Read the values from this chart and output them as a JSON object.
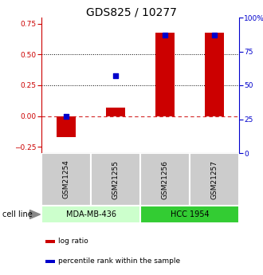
{
  "title": "GDS825 / 10277",
  "samples": [
    "GSM21254",
    "GSM21255",
    "GSM21256",
    "GSM21257"
  ],
  "log_ratio": [
    -0.17,
    0.07,
    0.68,
    0.68
  ],
  "percentile_rank": [
    27,
    57,
    87,
    87
  ],
  "left_ylim": [
    -0.3,
    0.8
  ],
  "right_ylim": [
    0,
    100
  ],
  "left_yticks": [
    -0.25,
    0.0,
    0.25,
    0.5,
    0.75
  ],
  "right_yticks": [
    0,
    25,
    50,
    75,
    100
  ],
  "right_yticklabels": [
    "0",
    "25",
    "50",
    "75",
    "100%"
  ],
  "hlines_dotted": [
    0.25,
    0.5
  ],
  "hline_dashed": 0.0,
  "bar_color": "#cc0000",
  "square_color": "#0000cc",
  "cell_lines": [
    "MDA-MB-436",
    "HCC 1954"
  ],
  "cell_line_groups": [
    [
      0,
      1
    ],
    [
      2,
      3
    ]
  ],
  "cell_line_colors": [
    "#ccffcc",
    "#33cc33"
  ],
  "sample_box_color": "#cccccc",
  "bar_width": 0.4,
  "square_size": 18,
  "left_axis_color": "#cc0000",
  "right_axis_color": "#0000cc",
  "title_fontsize": 10,
  "label_fontsize": 6.5,
  "tick_fontsize": 6.5,
  "cell_line_fontsize": 7,
  "legend_fontsize": 6.5
}
